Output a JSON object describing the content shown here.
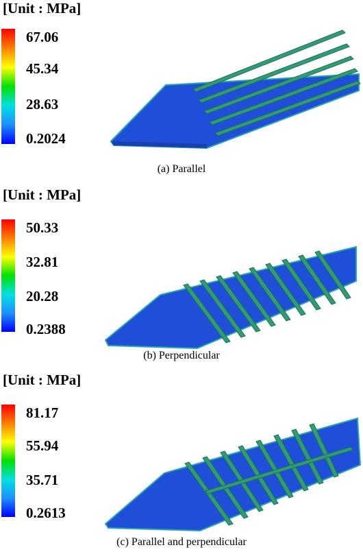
{
  "panels": [
    {
      "unit_label": "[Unit : MPa]",
      "ticks": [
        "67.06",
        "45.34",
        "28.63",
        "0.2024"
      ],
      "caption": "(a) Parallel",
      "fin_layout": "parallel"
    },
    {
      "unit_label": "[Unit : MPa]",
      "ticks": [
        "50.33",
        "32.81",
        "20.28",
        "0.2388"
      ],
      "caption": "(b) Perpendicular",
      "fin_layout": "perpendicular"
    },
    {
      "unit_label": "[Unit : MPa]",
      "ticks": [
        "81.17",
        "55.94",
        "35.71",
        "0.2613"
      ],
      "caption": "(c) Parallel and perpendicular",
      "fin_layout": "parallel-and-perpendicular"
    }
  ],
  "colors": {
    "colorbar": [
      "#ff0000",
      "#ff7f00",
      "#ffff00",
      "#00e000",
      "#00e0e0",
      "#1e90ff",
      "#0000ff"
    ],
    "plate": "#1f4fd8",
    "plate_edge": "#2aa8a8",
    "fin": "#2f9c74"
  }
}
